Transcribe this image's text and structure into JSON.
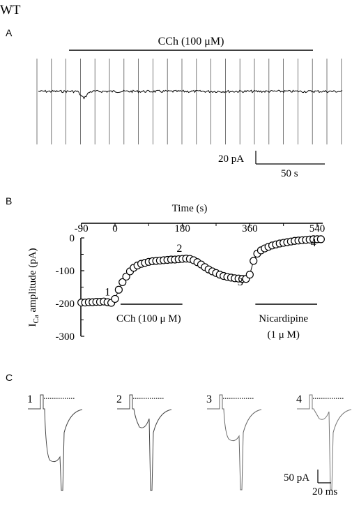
{
  "figure": {
    "genotype": "WT",
    "panel_a": {
      "label": "A",
      "drug_label": "CCh (100 μM)",
      "scale_current": "20 pA",
      "scale_time": "50 s"
    },
    "panel_b": {
      "label": "B"
    },
    "panel_c": {
      "label": "C",
      "scale_current": "50 pA",
      "scale_time": "20 ms",
      "trace_labels": [
        "1",
        "2",
        "3",
        "4"
      ]
    }
  },
  "chart_data": {
    "type": "scatter",
    "xlabel": "Time (s)",
    "ylabel_main": "I",
    "ylabel_sub": "Ca",
    "ylabel_rest": " amplitude (pA)",
    "x_ticks": [
      -90,
      0,
      180,
      360,
      540
    ],
    "y_ticks": [
      0,
      -100,
      -200,
      -300
    ],
    "xlim": [
      -90,
      555
    ],
    "ylim": [
      -300,
      0
    ],
    "x": [
      -90,
      -80,
      -70,
      -60,
      -50,
      -40,
      -30,
      -20,
      -10,
      0,
      10,
      20,
      30,
      40,
      50,
      60,
      70,
      80,
      90,
      100,
      110,
      120,
      130,
      140,
      150,
      160,
      170,
      180,
      190,
      200,
      210,
      220,
      230,
      240,
      250,
      260,
      270,
      280,
      290,
      300,
      310,
      320,
      330,
      340,
      350,
      360,
      370,
      380,
      390,
      400,
      410,
      420,
      430,
      440,
      450,
      460,
      470,
      480,
      490,
      500,
      510,
      520,
      530,
      540,
      550
    ],
    "y": [
      -197,
      -197,
      -196,
      -196,
      -195,
      -195,
      -194,
      -196,
      -198,
      -186,
      -158,
      -135,
      -118,
      -102,
      -91,
      -84,
      -79,
      -76,
      -73,
      -71,
      -70,
      -69,
      -68,
      -67,
      -66,
      -66,
      -65,
      -64,
      -63,
      -64,
      -68,
      -74,
      -81,
      -89,
      -96,
      -102,
      -107,
      -112,
      -116,
      -119,
      -121,
      -123,
      -124,
      -125,
      -125,
      -112,
      -70,
      -48,
      -38,
      -32,
      -27,
      -23,
      -20,
      -17,
      -15,
      -13,
      -11,
      -9,
      -8,
      -7,
      -6,
      -5,
      -4,
      -4,
      -4
    ],
    "point_labels": [
      {
        "text": "1",
        "x": -20,
        "y": -175
      },
      {
        "text": "2",
        "x": 172,
        "y": -43
      },
      {
        "text": "3",
        "x": 335,
        "y": -145
      },
      {
        "text": "4",
        "x": 530,
        "y": -26
      }
    ],
    "annotations": [
      {
        "text": "CCh (100 μ M)",
        "x_start": 0,
        "x_end": 180
      },
      {
        "text": "Nicardipine",
        "text2": "(1 μ M)",
        "x_start": 360,
        "x_end": 540
      }
    ]
  }
}
